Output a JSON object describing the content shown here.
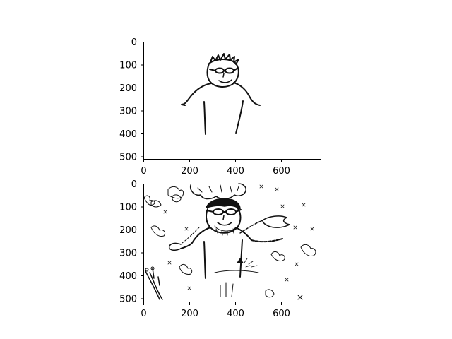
{
  "figure": {
    "background": "#ffffff",
    "panels": [
      {
        "image": "simple line drawing of a person with glasses and spiky hair",
        "xticks": [
          "0",
          "200",
          "400",
          "600"
        ],
        "yticks": [
          "0",
          "100",
          "200",
          "300",
          "400",
          "500"
        ]
      },
      {
        "image": "detailed ink drawing of a person with glasses, chains, butterflies and insects",
        "xticks": [
          "0",
          "200",
          "400",
          "600"
        ],
        "yticks": [
          "0",
          "100",
          "200",
          "300",
          "400",
          "500"
        ]
      }
    ]
  }
}
